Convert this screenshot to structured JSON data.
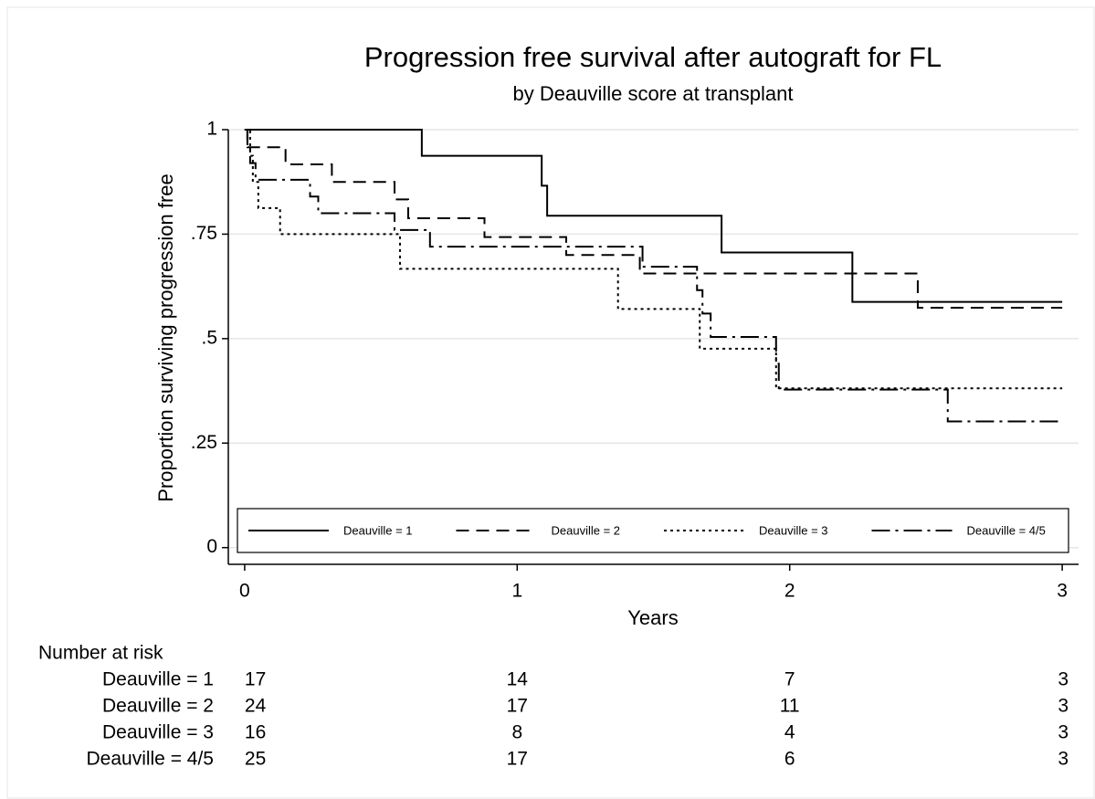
{
  "chart_data": {
    "type": "step",
    "title": "Progression free survival after autograft for FL",
    "subtitle": "by Deauville score at transplant",
    "x_label": "Years",
    "y_label": "Proportion surviving progression free",
    "xlim": [
      -0.06,
      3.06
    ],
    "ylim": [
      -0.04,
      1
    ],
    "xticks": [
      0,
      1,
      2,
      3
    ],
    "yticks": [
      0,
      {
        "value": 0.25,
        "label": ".25"
      },
      {
        "value": 0.5,
        "label": ".5"
      },
      {
        "value": 0.75,
        "label": ".75"
      },
      1
    ],
    "grid": true,
    "legend": "bottom",
    "series": [
      {
        "name": "Deauville = 1",
        "color": "#000000",
        "style": "solid",
        "x": [
          0,
          0.65,
          1.09,
          1.11,
          1.75,
          2.23,
          3.0
        ],
        "values": [
          1,
          0.9375,
          0.866,
          0.794,
          0.706,
          0.588,
          0.588
        ]
      },
      {
        "name": "Deauville = 2",
        "color": "#000000",
        "style": "dashed",
        "x": [
          0,
          0.01,
          0.15,
          0.32,
          0.55,
          0.6,
          0.88,
          1.18,
          1.45,
          2.47,
          3.0
        ],
        "values": [
          1,
          0.958,
          0.917,
          0.875,
          0.833,
          0.788,
          0.743,
          0.7,
          0.656,
          0.574,
          0.574
        ]
      },
      {
        "name": "Deauville = 3",
        "color": "#000000",
        "style": "dotted",
        "x": [
          0,
          0.02,
          0.03,
          0.05,
          0.13,
          0.57,
          1.37,
          1.67,
          1.95,
          3.0
        ],
        "values": [
          1,
          0.9375,
          0.875,
          0.8125,
          0.75,
          0.667,
          0.571,
          0.476,
          0.381,
          0.381
        ]
      },
      {
        "name": "Deauville = 4/5",
        "color": "#000000",
        "style": "dashdot",
        "x": [
          0,
          0.01,
          0.02,
          0.04,
          0.24,
          0.27,
          0.55,
          0.68,
          1.46,
          1.66,
          1.68,
          1.71,
          1.95,
          1.96,
          2.58,
          3.0
        ],
        "values": [
          1,
          0.96,
          0.92,
          0.88,
          0.84,
          0.8,
          0.76,
          0.72,
          0.672,
          0.616,
          0.56,
          0.504,
          0.44,
          0.378,
          0.302,
          0.302
        ]
      }
    ],
    "risk_table": {
      "title": "Number at risk",
      "counts": [
        [
          17,
          14,
          7,
          3
        ],
        [
          24,
          17,
          11,
          3
        ],
        [
          16,
          8,
          4,
          3
        ],
        [
          25,
          17,
          6,
          3
        ]
      ]
    }
  }
}
